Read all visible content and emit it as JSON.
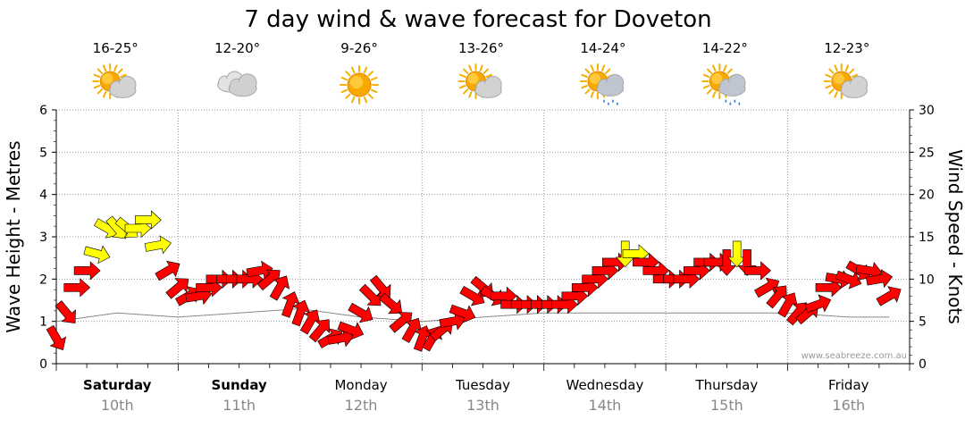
{
  "chart_data": {
    "type": "line",
    "title": "7 day wind & wave forecast for Doveton",
    "ylabel": "Wave Height - Metres",
    "y2label": "Wind Speed - Knots",
    "ylim": [
      0,
      6
    ],
    "y2lim": [
      0,
      30
    ],
    "yticks": [
      "0",
      "1",
      "2",
      "3",
      "4",
      "5",
      "6"
    ],
    "y2ticks": [
      "0",
      "5",
      "10",
      "15",
      "20",
      "25",
      "30"
    ],
    "grid": true,
    "days": [
      {
        "name": "Saturday",
        "date": "10th",
        "bold": true,
        "temp": "16-25°",
        "icon": "sun-cloud-icon"
      },
      {
        "name": "Sunday",
        "date": "11th",
        "bold": true,
        "temp": "12-20°",
        "icon": "cloud-icon"
      },
      {
        "name": "Monday",
        "date": "12th",
        "bold": false,
        "temp": "9-26°",
        "icon": "sun-icon"
      },
      {
        "name": "Tuesday",
        "date": "13th",
        "bold": false,
        "temp": "13-26°",
        "icon": "sun-cloud-icon"
      },
      {
        "name": "Wednesday",
        "date": "14th",
        "bold": false,
        "temp": "14-24°",
        "icon": "sun-rain-icon"
      },
      {
        "name": "Thursday",
        "date": "15th",
        "bold": false,
        "temp": "14-22°",
        "icon": "sun-rain-icon"
      },
      {
        "name": "Friday",
        "date": "16th",
        "bold": false,
        "temp": "12-23°",
        "icon": "sun-cloud-icon"
      }
    ],
    "wind_series": {
      "name": "",
      "units": "knots",
      "hours": [
        0,
        2,
        4,
        6,
        8,
        10,
        12,
        14,
        16,
        18,
        20,
        22,
        24,
        26,
        28,
        30,
        32,
        34,
        36,
        38,
        40,
        42,
        44,
        46,
        48,
        50,
        52,
        54,
        56,
        58,
        60,
        62,
        64,
        66,
        68,
        70,
        72,
        74,
        76,
        78,
        80,
        82,
        84,
        86,
        88,
        90,
        92,
        94,
        96,
        98,
        100,
        102,
        104,
        106,
        108,
        110,
        112,
        114,
        116,
        118,
        120,
        122,
        124,
        126,
        128,
        130,
        132,
        134,
        136,
        138,
        140,
        142,
        144,
        146,
        148,
        150,
        152,
        154,
        156,
        158,
        160,
        162,
        164
      ],
      "speed": [
        3,
        6,
        9,
        11,
        13,
        16,
        16,
        16,
        16,
        17,
        14,
        11,
        9,
        8,
        8,
        9,
        10,
        10,
        10,
        10,
        11,
        10,
        9,
        7,
        6,
        5,
        4,
        3,
        3,
        4,
        6,
        8,
        9,
        7,
        5,
        4,
        3,
        3,
        4,
        5,
        6,
        8,
        9,
        8,
        8,
        7,
        7,
        7,
        7,
        7,
        7,
        8,
        9,
        10,
        11,
        12,
        13,
        13,
        12,
        11,
        10,
        10,
        10,
        11,
        12,
        12,
        12,
        13,
        12,
        11,
        9,
        8,
        7,
        6,
        6,
        7,
        9,
        10,
        10,
        11,
        11,
        10,
        8
      ],
      "direction_deg": [
        30,
        40,
        90,
        90,
        75,
        60,
        40,
        50,
        90,
        90,
        100,
        120,
        130,
        120,
        100,
        90,
        90,
        90,
        90,
        90,
        100,
        130,
        150,
        160,
        160,
        150,
        140,
        120,
        100,
        70,
        60,
        45,
        40,
        50,
        130,
        150,
        160,
        150,
        130,
        100,
        70,
        60,
        50,
        60,
        90,
        90,
        90,
        90,
        90,
        90,
        90,
        90,
        90,
        90,
        90,
        90,
        0,
        90,
        90,
        90,
        90,
        90,
        90,
        90,
        90,
        90,
        0,
        0,
        0,
        90,
        120,
        140,
        150,
        140,
        130,
        110,
        90,
        80,
        70,
        60,
        80,
        100,
        120
      ]
    },
    "wave_series": {
      "name": "",
      "units": "metres",
      "hours": [
        0,
        12,
        24,
        36,
        48,
        60,
        72,
        84,
        96,
        108,
        120,
        132,
        144,
        156,
        164
      ],
      "height": [
        1.0,
        1.2,
        1.1,
        1.2,
        1.3,
        1.1,
        1.0,
        1.1,
        1.2,
        1.2,
        1.2,
        1.2,
        1.2,
        1.1,
        1.1
      ]
    },
    "credit": "www.seabreeze.com.au"
  }
}
